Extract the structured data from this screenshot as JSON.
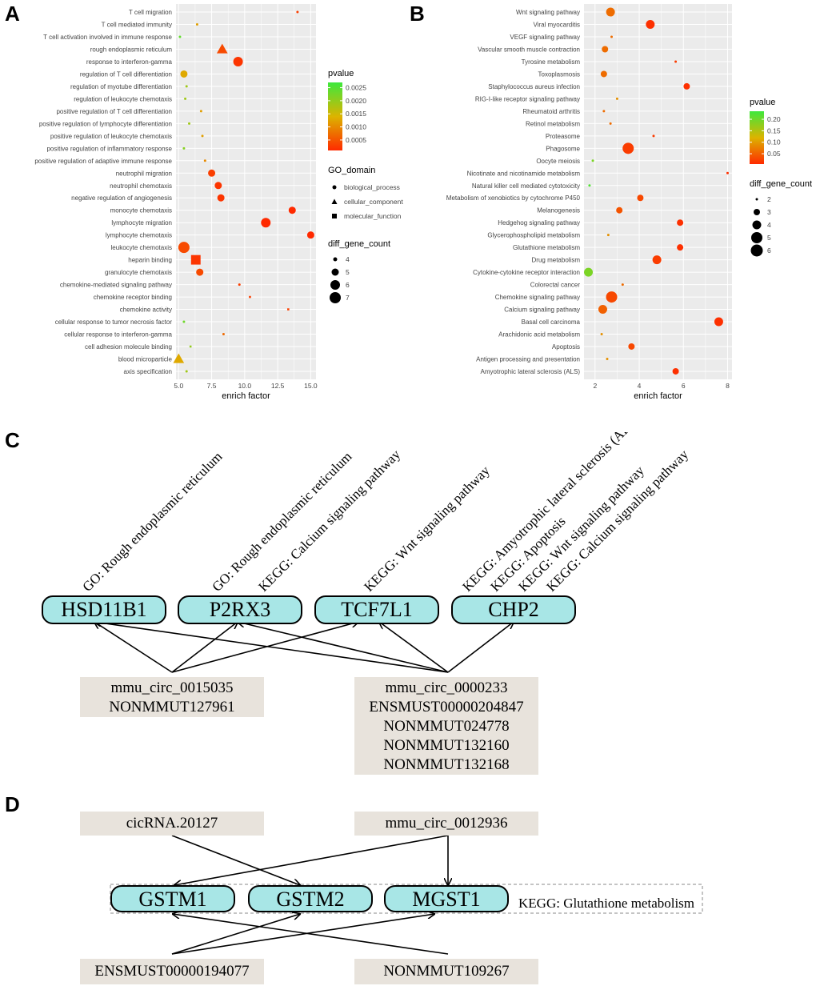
{
  "panels": {
    "a": "A",
    "b": "B",
    "c": "C",
    "d": "D"
  },
  "colors": {
    "pvalue_low": "#ff2a00",
    "pvalue_high": "#3de83d",
    "panel_bg": "#ebebeb",
    "gene_box_fill": "#a8e6e6",
    "rna_box_fill": "#e8e3dc"
  },
  "chart_data": [
    {
      "panel": "A",
      "type": "scatter",
      "xlabel": "enrich factor",
      "xlim": [
        4.8,
        15.4
      ],
      "xticks": [
        "5.0",
        "7.5",
        "10.0",
        "12.5",
        "15.0"
      ],
      "xtick_values": [
        5.0,
        7.5,
        10.0,
        12.5,
        15.0
      ],
      "grid": true,
      "legend_position": "right",
      "color_legend": {
        "title": "pvalue",
        "ticks": [
          "0.0025",
          "0.0020",
          "0.0015",
          "0.0010",
          "0.0005"
        ],
        "tick_values": [
          0.0025,
          0.002,
          0.0015,
          0.001,
          0.0005
        ],
        "range": [
          0.0001,
          0.0027
        ]
      },
      "shape_legend": {
        "title": "GO_domain",
        "items": [
          "biological_process",
          "cellular_component",
          "molecular_function"
        ]
      },
      "size_legend": {
        "title": "diff_gene_count",
        "items": [
          "4",
          "5",
          "6",
          "7"
        ],
        "values": [
          4,
          5,
          6,
          7
        ]
      },
      "terms": [
        "T cell migration",
        "T cell mediated immunity",
        "T cell activation involved in immune response",
        "rough endoplasmic reticulum",
        "response to interferon-gamma",
        "regulation of T cell differentiation",
        "regulation of myotube differentiation",
        "regulation of leukocyte chemotaxis",
        "positive regulation of T cell differentiation",
        "positive regulation of lymphocyte differentiation",
        "positive regulation of leukocyte chemotaxis",
        "positive regulation of inflammatory response",
        "positive regulation of adaptive immune response",
        "neutrophil migration",
        "neutrophil chemotaxis",
        "negative regulation of angiogenesis",
        "monocyte chemotaxis",
        "lymphocyte migration",
        "lymphocyte chemotaxis",
        "leukocyte chemotaxis",
        "heparin binding",
        "granulocyte chemotaxis",
        "chemokine-mediated signaling pathway",
        "chemokine receptor binding",
        "chemokine activity",
        "cellular response to tumor necrosis factor",
        "cellular response to interferon-gamma",
        "cell adhesion molecule binding",
        "blood microparticle",
        "axis specification"
      ],
      "x": [
        14.0,
        6.4,
        5.1,
        8.3,
        9.5,
        5.4,
        5.6,
        5.5,
        6.7,
        5.8,
        6.8,
        5.4,
        7.0,
        7.5,
        8.0,
        8.2,
        13.6,
        11.6,
        15.0,
        5.4,
        6.3,
        6.6,
        9.6,
        10.4,
        13.3,
        5.4,
        8.4,
        5.9,
        5.0,
        5.6
      ],
      "pvalue": [
        0.0003,
        0.0012,
        0.0024,
        0.0004,
        0.0002,
        0.0013,
        0.0019,
        0.0019,
        0.0012,
        0.0019,
        0.0012,
        0.0021,
        0.001,
        0.0003,
        0.0002,
        0.0002,
        0.0001,
        0.0001,
        0.0001,
        0.0004,
        0.0002,
        0.0004,
        0.0003,
        0.0003,
        0.0003,
        0.0023,
        0.0007,
        0.002,
        0.0013,
        0.0019
      ],
      "gene_count": [
        3,
        3,
        3,
        6,
        6,
        5,
        3,
        3,
        3,
        3,
        3,
        3,
        3,
        5,
        5,
        5,
        5,
        6,
        5,
        7,
        7,
        5,
        3,
        3,
        3,
        3,
        3,
        3,
        6,
        3
      ],
      "domain": [
        "bp",
        "bp",
        "bp",
        "cc",
        "bp",
        "bp",
        "bp",
        "bp",
        "bp",
        "bp",
        "bp",
        "bp",
        "bp",
        "bp",
        "bp",
        "bp",
        "bp",
        "bp",
        "bp",
        "bp",
        "mf",
        "bp",
        "bp",
        "mf",
        "mf",
        "bp",
        "bp",
        "mf",
        "cc",
        "bp"
      ]
    },
    {
      "panel": "B",
      "type": "scatter",
      "xlabel": "enrich factor",
      "xlim": [
        1.5,
        8.2
      ],
      "xticks": [
        "2",
        "4",
        "6",
        "8"
      ],
      "xtick_values": [
        2,
        4,
        6,
        8
      ],
      "grid": true,
      "legend_position": "right",
      "color_legend": {
        "title": "pvalue",
        "ticks": [
          "0.20",
          "0.15",
          "0.10",
          "0.05"
        ],
        "tick_values": [
          0.2,
          0.15,
          0.1,
          0.05
        ],
        "range": [
          0.005,
          0.235
        ]
      },
      "size_legend": {
        "title": "diff_gene_count",
        "items": [
          "2",
          "3",
          "4",
          "5",
          "6"
        ],
        "values": [
          2,
          3,
          4,
          5,
          6
        ]
      },
      "terms": [
        "Wnt signaling pathway",
        "Viral myocarditis",
        "VEGF signaling pathway",
        "Vascular smooth muscle contraction",
        "Tyrosine metabolism",
        "Toxoplasmosis",
        "Staphylococcus aureus infection",
        "RIG-I-like receptor signaling pathway",
        "Rheumatoid arthritis",
        "Retinol metabolism",
        "Proteasome",
        "Phagosome",
        "Oocyte meiosis",
        "Nicotinate and nicotinamide metabolism",
        "Natural killer cell mediated cytotoxicity",
        "Metabolism of xenobiotics by cytochrome P450",
        "Melanogenesis",
        "Hedgehog signaling pathway",
        "Glycerophospholipid metabolism",
        "Glutathione metabolism",
        "Drug metabolism",
        "Cytokine-cytokine receptor interaction",
        "Colorectal cancer",
        "Chemokine signaling pathway",
        "Calcium signaling pathway",
        "Basal cell carcinoma",
        "Arachidonic acid metabolism",
        "Apoptosis",
        "Antigen processing and presentation",
        "Amyotrophic lateral sclerosis (ALS)"
      ],
      "x": [
        2.7,
        4.5,
        2.75,
        2.45,
        5.65,
        2.4,
        6.15,
        3.0,
        2.4,
        2.7,
        4.65,
        3.5,
        1.9,
        8.0,
        1.75,
        4.05,
        3.1,
        5.85,
        2.6,
        5.85,
        4.8,
        1.7,
        3.25,
        2.75,
        2.35,
        7.6,
        2.3,
        3.65,
        2.55,
        5.65
      ],
      "pvalue": [
        0.06,
        0.01,
        0.06,
        0.06,
        0.02,
        0.06,
        0.01,
        0.09,
        0.06,
        0.06,
        0.02,
        0.02,
        0.19,
        0.01,
        0.22,
        0.03,
        0.04,
        0.01,
        0.09,
        0.01,
        0.02,
        0.19,
        0.06,
        0.03,
        0.05,
        0.01,
        0.09,
        0.03,
        0.09,
        0.01
      ],
      "gene_count": [
        4,
        4,
        2,
        3,
        2,
        3,
        3,
        2,
        2,
        2,
        2,
        5,
        2,
        2,
        2,
        3,
        3,
        3,
        2,
        3,
        4,
        4,
        2,
        5,
        4,
        4,
        2,
        3,
        2,
        3
      ]
    }
  ],
  "panel_c": {
    "genes": [
      "HSD11B1",
      "P2RX3",
      "TCF7L1",
      "CHP2"
    ],
    "annotations": [
      "GO: Rough endoplasmic reticulum",
      "GO: Rough endoplasmic reticulum",
      "KEGG: Calcium signaling pathway",
      "KEGG: Wnt signaling pathway",
      "KEGG: Amyotrophic lateral sclerosis (ALS)",
      "KEGG: Apoptosis",
      "KEGG: Wnt signaling pathway",
      "KEGG: Calcium signaling pathway"
    ],
    "rna_left": [
      "mmu_circ_0015035",
      "NONMMUT127961"
    ],
    "rna_right": [
      "mmu_circ_0000233",
      "ENSMUST00000204847",
      "NONMMUT024778",
      "NONMMUT132160",
      "NONMMUT132168"
    ]
  },
  "panel_d": {
    "genes": [
      "GSTM1",
      "GSTM2",
      "MGST1"
    ],
    "pathway_label": "KEGG: Glutathione metabolism",
    "rna_top_left": "cicRNA.20127",
    "rna_top_right": "mmu_circ_0012936",
    "rna_bottom_left": "ENSMUST00000194077",
    "rna_bottom_right": "NONMMUT109267"
  }
}
